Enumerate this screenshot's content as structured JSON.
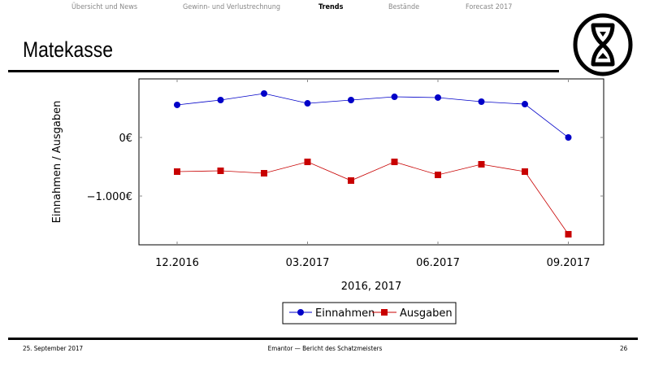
{
  "nav": [
    {
      "label": "Übersicht und News",
      "active": false
    },
    {
      "label": "Gewinn- und Verlustrechnung",
      "active": false
    },
    {
      "label": "Trends",
      "active": true
    },
    {
      "label": "Bestände",
      "active": false
    },
    {
      "label": "Forecast 2017",
      "active": false
    }
  ],
  "slide_title": "Matekasse",
  "logo_icon": "hourglass-in-circle-icon",
  "footer": {
    "date": "25. September 2017",
    "center": "Emantor — Bericht des Schatzmeisters",
    "page": "26"
  },
  "chart_data": {
    "type": "line",
    "xlabel": "2016, 2017",
    "ylabel": "Einnahmen / Ausgaben",
    "x": [
      "12.2016",
      "01.2017",
      "02.2017",
      "03.2017",
      "04.2017",
      "05.2017",
      "06.2017",
      "07.2017",
      "08.2017",
      "09.2017"
    ],
    "x_ticks": [
      "12.2016",
      "03.2017",
      "06.2017",
      "09.2017"
    ],
    "y_ticks": [
      {
        "value": 0,
        "label": "0€"
      },
      {
        "value": -1000,
        "label": "−1.000€"
      }
    ],
    "ylim": [
      -1833,
      1000
    ],
    "grid": false,
    "legend_placement": "bottom",
    "series": [
      {
        "name": "Einnahmen",
        "color": "#0000c8",
        "marker": "circle",
        "values": [
          556,
          639,
          750,
          583,
          639,
          694,
          681,
          611,
          569,
          0
        ]
      },
      {
        "name": "Ausgaben",
        "color": "#c80000",
        "marker": "square",
        "values": [
          -583,
          -569,
          -611,
          -417,
          -736,
          -417,
          -639,
          -458,
          -583,
          -1653
        ]
      }
    ]
  }
}
